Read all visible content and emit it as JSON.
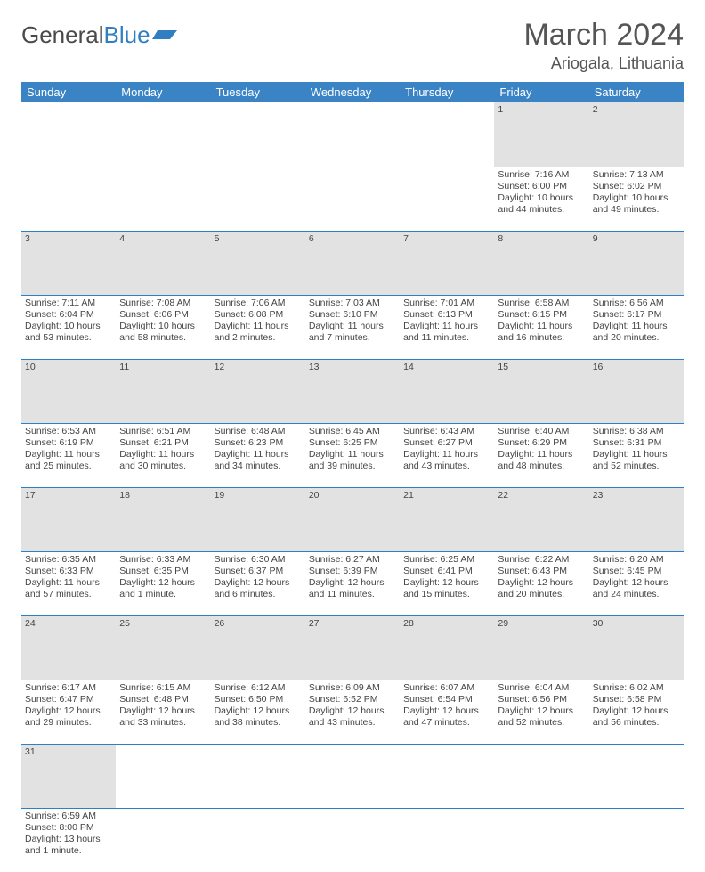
{
  "logo": {
    "text1": "General",
    "text2": "Blue"
  },
  "header": {
    "title": "March 2024",
    "location": "Ariogala, Lithuania"
  },
  "dayHeaders": [
    "Sunday",
    "Monday",
    "Tuesday",
    "Wednesday",
    "Thursday",
    "Friday",
    "Saturday"
  ],
  "colors": {
    "headerBg": "#3a83c4",
    "headerText": "#ffffff",
    "dayNumBg": "#e2e2e2",
    "borderBlue": "#2f7fc1",
    "textGray": "#444444"
  },
  "weeks": [
    [
      null,
      null,
      null,
      null,
      null,
      {
        "n": "1",
        "sr": "Sunrise: 7:16 AM",
        "ss": "Sunset: 6:00 PM",
        "d1": "Daylight: 10 hours",
        "d2": "and 44 minutes."
      },
      {
        "n": "2",
        "sr": "Sunrise: 7:13 AM",
        "ss": "Sunset: 6:02 PM",
        "d1": "Daylight: 10 hours",
        "d2": "and 49 minutes."
      }
    ],
    [
      {
        "n": "3",
        "sr": "Sunrise: 7:11 AM",
        "ss": "Sunset: 6:04 PM",
        "d1": "Daylight: 10 hours",
        "d2": "and 53 minutes."
      },
      {
        "n": "4",
        "sr": "Sunrise: 7:08 AM",
        "ss": "Sunset: 6:06 PM",
        "d1": "Daylight: 10 hours",
        "d2": "and 58 minutes."
      },
      {
        "n": "5",
        "sr": "Sunrise: 7:06 AM",
        "ss": "Sunset: 6:08 PM",
        "d1": "Daylight: 11 hours",
        "d2": "and 2 minutes."
      },
      {
        "n": "6",
        "sr": "Sunrise: 7:03 AM",
        "ss": "Sunset: 6:10 PM",
        "d1": "Daylight: 11 hours",
        "d2": "and 7 minutes."
      },
      {
        "n": "7",
        "sr": "Sunrise: 7:01 AM",
        "ss": "Sunset: 6:13 PM",
        "d1": "Daylight: 11 hours",
        "d2": "and 11 minutes."
      },
      {
        "n": "8",
        "sr": "Sunrise: 6:58 AM",
        "ss": "Sunset: 6:15 PM",
        "d1": "Daylight: 11 hours",
        "d2": "and 16 minutes."
      },
      {
        "n": "9",
        "sr": "Sunrise: 6:56 AM",
        "ss": "Sunset: 6:17 PM",
        "d1": "Daylight: 11 hours",
        "d2": "and 20 minutes."
      }
    ],
    [
      {
        "n": "10",
        "sr": "Sunrise: 6:53 AM",
        "ss": "Sunset: 6:19 PM",
        "d1": "Daylight: 11 hours",
        "d2": "and 25 minutes."
      },
      {
        "n": "11",
        "sr": "Sunrise: 6:51 AM",
        "ss": "Sunset: 6:21 PM",
        "d1": "Daylight: 11 hours",
        "d2": "and 30 minutes."
      },
      {
        "n": "12",
        "sr": "Sunrise: 6:48 AM",
        "ss": "Sunset: 6:23 PM",
        "d1": "Daylight: 11 hours",
        "d2": "and 34 minutes."
      },
      {
        "n": "13",
        "sr": "Sunrise: 6:45 AM",
        "ss": "Sunset: 6:25 PM",
        "d1": "Daylight: 11 hours",
        "d2": "and 39 minutes."
      },
      {
        "n": "14",
        "sr": "Sunrise: 6:43 AM",
        "ss": "Sunset: 6:27 PM",
        "d1": "Daylight: 11 hours",
        "d2": "and 43 minutes."
      },
      {
        "n": "15",
        "sr": "Sunrise: 6:40 AM",
        "ss": "Sunset: 6:29 PM",
        "d1": "Daylight: 11 hours",
        "d2": "and 48 minutes."
      },
      {
        "n": "16",
        "sr": "Sunrise: 6:38 AM",
        "ss": "Sunset: 6:31 PM",
        "d1": "Daylight: 11 hours",
        "d2": "and 52 minutes."
      }
    ],
    [
      {
        "n": "17",
        "sr": "Sunrise: 6:35 AM",
        "ss": "Sunset: 6:33 PM",
        "d1": "Daylight: 11 hours",
        "d2": "and 57 minutes."
      },
      {
        "n": "18",
        "sr": "Sunrise: 6:33 AM",
        "ss": "Sunset: 6:35 PM",
        "d1": "Daylight: 12 hours",
        "d2": "and 1 minute."
      },
      {
        "n": "19",
        "sr": "Sunrise: 6:30 AM",
        "ss": "Sunset: 6:37 PM",
        "d1": "Daylight: 12 hours",
        "d2": "and 6 minutes."
      },
      {
        "n": "20",
        "sr": "Sunrise: 6:27 AM",
        "ss": "Sunset: 6:39 PM",
        "d1": "Daylight: 12 hours",
        "d2": "and 11 minutes."
      },
      {
        "n": "21",
        "sr": "Sunrise: 6:25 AM",
        "ss": "Sunset: 6:41 PM",
        "d1": "Daylight: 12 hours",
        "d2": "and 15 minutes."
      },
      {
        "n": "22",
        "sr": "Sunrise: 6:22 AM",
        "ss": "Sunset: 6:43 PM",
        "d1": "Daylight: 12 hours",
        "d2": "and 20 minutes."
      },
      {
        "n": "23",
        "sr": "Sunrise: 6:20 AM",
        "ss": "Sunset: 6:45 PM",
        "d1": "Daylight: 12 hours",
        "d2": "and 24 minutes."
      }
    ],
    [
      {
        "n": "24",
        "sr": "Sunrise: 6:17 AM",
        "ss": "Sunset: 6:47 PM",
        "d1": "Daylight: 12 hours",
        "d2": "and 29 minutes."
      },
      {
        "n": "25",
        "sr": "Sunrise: 6:15 AM",
        "ss": "Sunset: 6:48 PM",
        "d1": "Daylight: 12 hours",
        "d2": "and 33 minutes."
      },
      {
        "n": "26",
        "sr": "Sunrise: 6:12 AM",
        "ss": "Sunset: 6:50 PM",
        "d1": "Daylight: 12 hours",
        "d2": "and 38 minutes."
      },
      {
        "n": "27",
        "sr": "Sunrise: 6:09 AM",
        "ss": "Sunset: 6:52 PM",
        "d1": "Daylight: 12 hours",
        "d2": "and 43 minutes."
      },
      {
        "n": "28",
        "sr": "Sunrise: 6:07 AM",
        "ss": "Sunset: 6:54 PM",
        "d1": "Daylight: 12 hours",
        "d2": "and 47 minutes."
      },
      {
        "n": "29",
        "sr": "Sunrise: 6:04 AM",
        "ss": "Sunset: 6:56 PM",
        "d1": "Daylight: 12 hours",
        "d2": "and 52 minutes."
      },
      {
        "n": "30",
        "sr": "Sunrise: 6:02 AM",
        "ss": "Sunset: 6:58 PM",
        "d1": "Daylight: 12 hours",
        "d2": "and 56 minutes."
      }
    ],
    [
      {
        "n": "31",
        "sr": "Sunrise: 6:59 AM",
        "ss": "Sunset: 8:00 PM",
        "d1": "Daylight: 13 hours",
        "d2": "and 1 minute."
      },
      null,
      null,
      null,
      null,
      null,
      null
    ]
  ]
}
